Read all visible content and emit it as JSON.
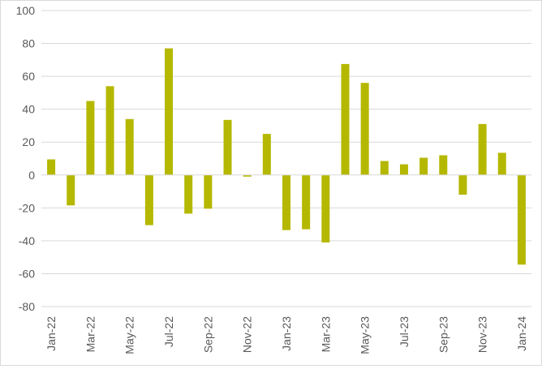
{
  "chart_data": {
    "type": "bar",
    "title": "",
    "xlabel": "",
    "ylabel": "",
    "ylim": [
      -80,
      100
    ],
    "yticks": [
      -80,
      -60,
      -40,
      -20,
      0,
      20,
      40,
      60,
      80,
      100
    ],
    "grid": "horizontal",
    "legend": "none",
    "bar_color": "#b5b800",
    "grid_color": "#d9d9d9",
    "categories": [
      "Jan-22",
      "Feb-22",
      "Mar-22",
      "Apr-22",
      "May-22",
      "Jun-22",
      "Jul-22",
      "Aug-22",
      "Sep-22",
      "Oct-22",
      "Nov-22",
      "Dec-22",
      "Jan-23",
      "Feb-23",
      "Mar-23",
      "Apr-23",
      "May-23",
      "Jun-23",
      "Jul-23",
      "Aug-23",
      "Sep-23",
      "Oct-23",
      "Nov-23",
      "Dec-23",
      "Jan-24"
    ],
    "tick_labels": [
      "Jan-22",
      "Mar-22",
      "May-22",
      "Jul-22",
      "Sep-22",
      "Nov-22",
      "Jan-23",
      "Mar-23",
      "May-23",
      "Jul-23",
      "Sep-23",
      "Nov-23",
      "Jan-24"
    ],
    "values": [
      9.5,
      -18.5,
      45,
      54,
      34,
      -30.5,
      77,
      -23.5,
      -20.5,
      33.5,
      -1,
      25,
      -33.5,
      -33,
      -41,
      67.5,
      56,
      8.5,
      6.5,
      10.5,
      12,
      -12,
      31,
      13.5,
      -54.5
    ]
  }
}
